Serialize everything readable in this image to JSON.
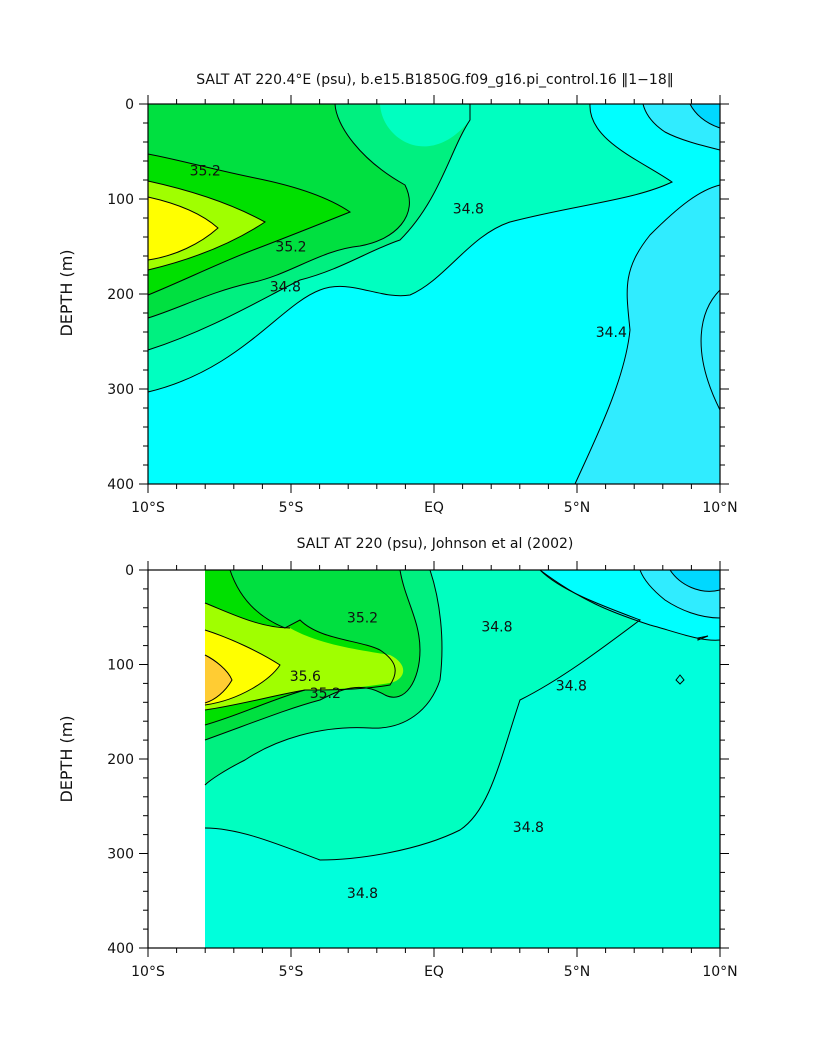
{
  "chart_data": [
    {
      "type": "contour",
      "title": "SALT AT 220.4°E (psu), b.e15.B1850G.f09_g16.pi_control.16 ‖1−18‖",
      "xlabel": "",
      "ylabel": "DEPTH (m)",
      "x_ticks": [
        "10°S",
        "5°S",
        "EQ",
        "5°N",
        "10°N"
      ],
      "y_ticks": [
        "0",
        "100",
        "200",
        "300",
        "400"
      ],
      "xlim": [
        -10,
        10
      ],
      "ylim": [
        0,
        400
      ],
      "y_inverted": true,
      "contour_interval": 0.2,
      "contour_labels": [
        {
          "text": "35.2",
          "lat": -8.0,
          "depth": 70
        },
        {
          "text": "35.2",
          "lat": -5.0,
          "depth": 150
        },
        {
          "text": "34.8",
          "lat": -5.2,
          "depth": 192
        },
        {
          "text": "34.8",
          "lat": 1.2,
          "depth": 110
        },
        {
          "text": "34.4",
          "lat": 6.2,
          "depth": 240
        }
      ]
    },
    {
      "type": "contour",
      "title": "SALT AT 220 (psu), Johnson et al (2002)",
      "xlabel": "",
      "ylabel": "DEPTH (m)",
      "x_ticks": [
        "10°S",
        "5°S",
        "EQ",
        "5°N",
        "10°N"
      ],
      "y_ticks": [
        "0",
        "100",
        "200",
        "300",
        "400"
      ],
      "xlim": [
        -10,
        10
      ],
      "ylim": [
        0,
        400
      ],
      "y_inverted": true,
      "data_lat_range": [
        -8,
        10
      ],
      "contour_interval": 0.2,
      "contour_labels": [
        {
          "text": "35.2",
          "lat": -2.5,
          "depth": 50
        },
        {
          "text": "34.8",
          "lat": 2.2,
          "depth": 60
        },
        {
          "text": "35.6",
          "lat": -4.5,
          "depth": 112
        },
        {
          "text": "35.2",
          "lat": -3.8,
          "depth": 130
        },
        {
          "text": "34.8",
          "lat": 4.8,
          "depth": 122
        },
        {
          "text": "34.8",
          "lat": 3.3,
          "depth": 272
        },
        {
          "text": "34.8",
          "lat": -2.5,
          "depth": 342
        }
      ]
    }
  ]
}
